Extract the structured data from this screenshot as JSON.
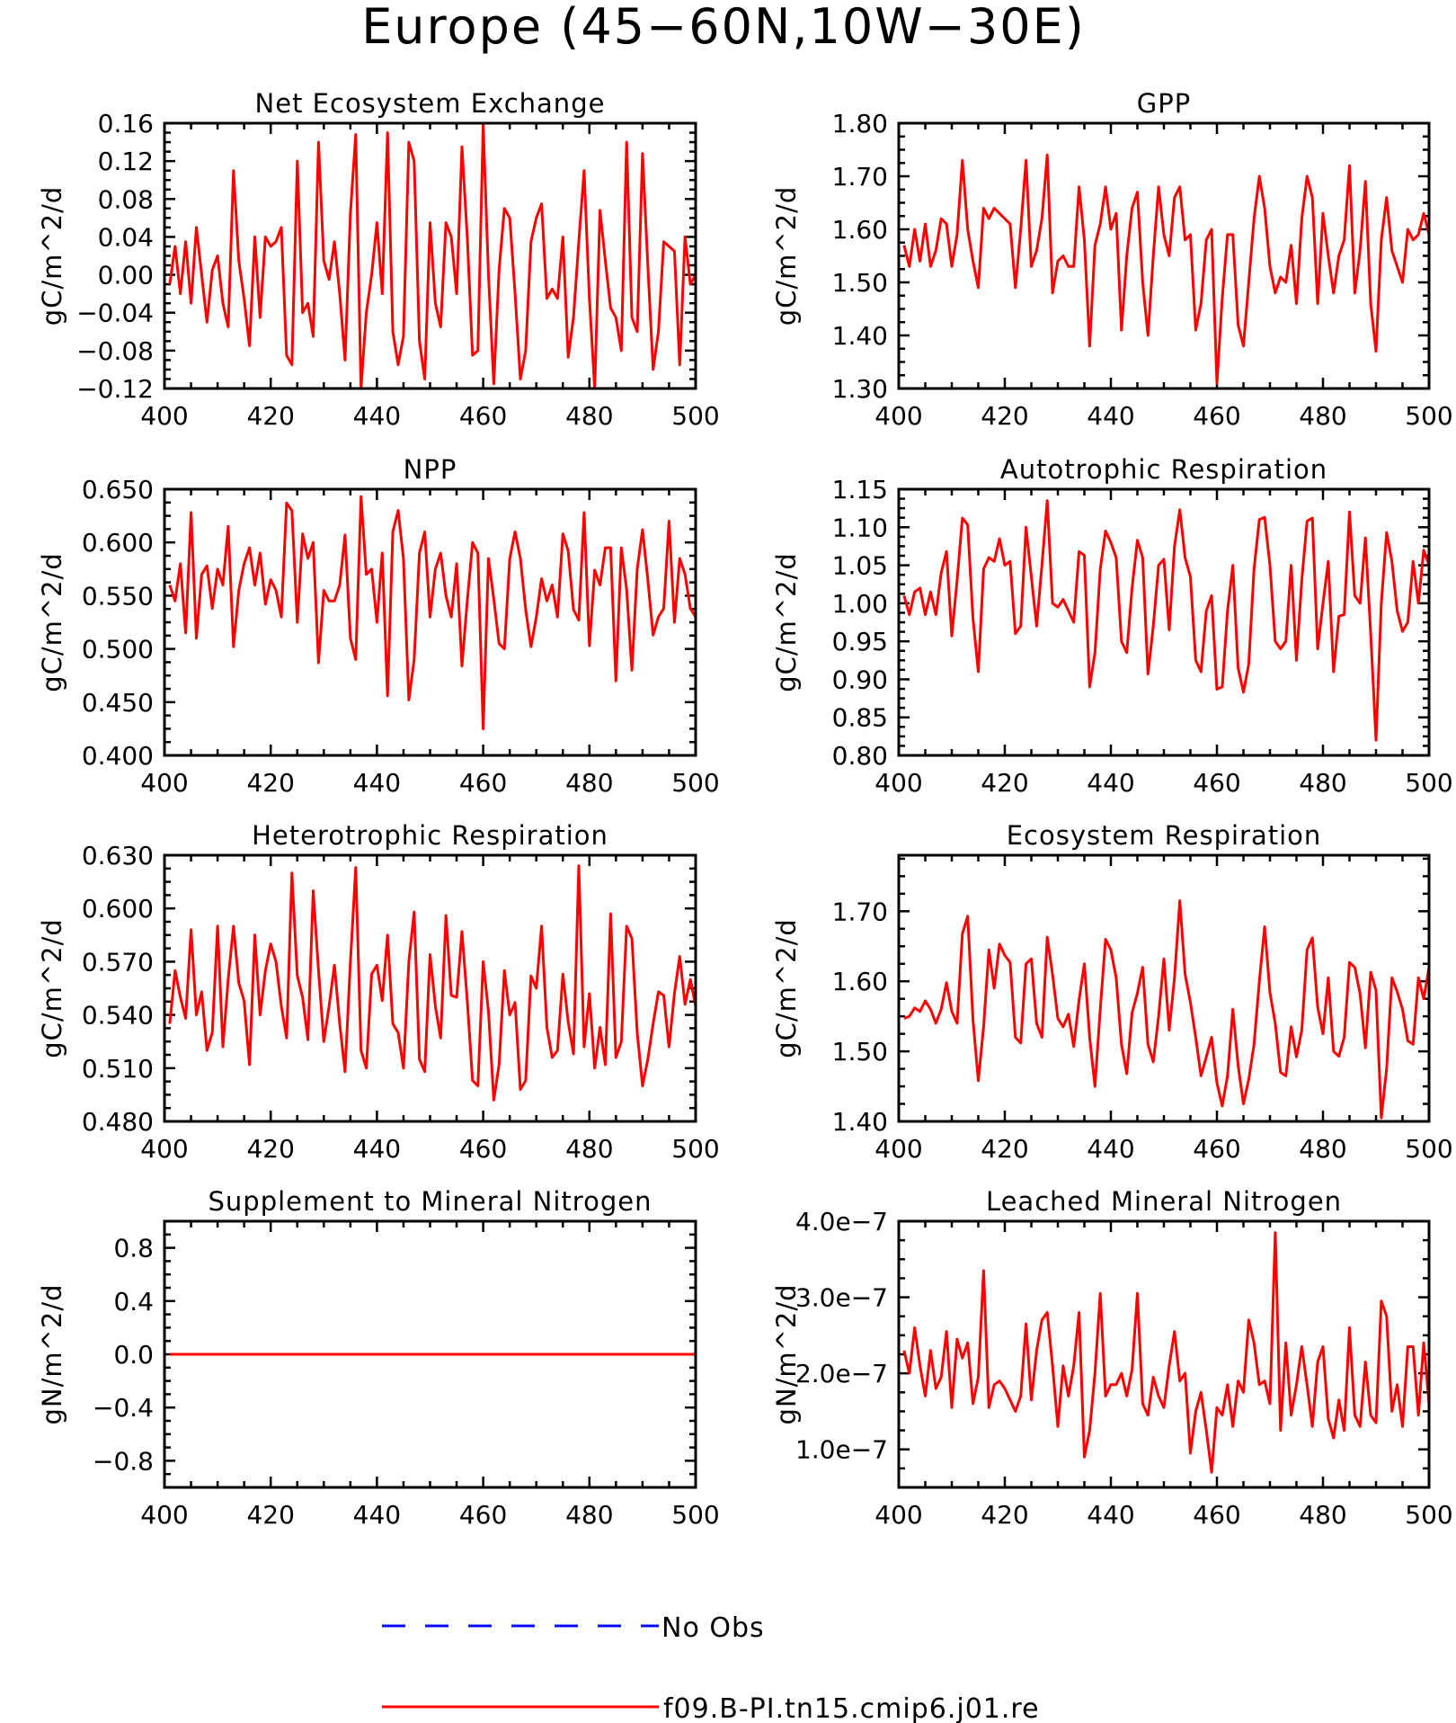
{
  "figure_title": "Europe (45-60N,10W-30E)",
  "legend": [
    {
      "label": "No Obs",
      "color": "#0000ff",
      "dashed": true
    },
    {
      "label": "f09.B-PI.tn15.cmip6.j01.re",
      "color": "#ff0000",
      "dashed": false
    }
  ],
  "chart_data": [
    {
      "type": "line",
      "title": "Net Ecosystem Exchange",
      "ylabel": "gC/m^2/d",
      "xlim": [
        400,
        500
      ],
      "ylim": [
        -0.12,
        0.16
      ],
      "xticks": [
        400,
        420,
        440,
        460,
        480,
        500
      ],
      "yticks": [
        -0.12,
        -0.08,
        -0.04,
        0.0,
        0.04,
        0.08,
        0.12,
        0.16
      ],
      "ytick_labels": [
        "-0.12",
        "-0.08",
        "-0.04",
        "0.00",
        "0.04",
        "0.08",
        "0.12",
        "0.16"
      ],
      "color": "#ff0000",
      "x_start": 401,
      "values": [
        -0.01,
        0.03,
        -0.02,
        0.035,
        -0.03,
        0.05,
        0.0,
        -0.05,
        0.005,
        0.02,
        -0.03,
        -0.055,
        0.11,
        0.015,
        -0.025,
        -0.075,
        0.04,
        -0.045,
        0.04,
        0.03,
        0.035,
        0.05,
        -0.085,
        -0.095,
        0.12,
        -0.04,
        -0.03,
        -0.065,
        0.14,
        0.015,
        -0.005,
        0.035,
        -0.02,
        -0.09,
        0.065,
        0.148,
        -0.12,
        -0.04,
        0.0,
        0.055,
        -0.02,
        0.15,
        -0.06,
        -0.095,
        -0.065,
        0.14,
        0.12,
        -0.07,
        -0.11,
        0.055,
        -0.03,
        -0.055,
        0.055,
        0.04,
        -0.02,
        0.135,
        0.04,
        -0.085,
        -0.08,
        0.158,
        0.0,
        -0.115,
        0.005,
        0.07,
        0.06,
        -0.02,
        -0.11,
        -0.08,
        0.035,
        0.06,
        0.075,
        -0.025,
        -0.015,
        -0.025,
        0.04,
        -0.087,
        -0.045,
        0.035,
        0.11,
        -0.025,
        -0.12,
        0.068,
        0.015,
        -0.035,
        -0.045,
        -0.08,
        0.14,
        -0.045,
        -0.06,
        0.128,
        0.01,
        -0.1,
        -0.06,
        0.035,
        0.03,
        0.025,
        -0.095,
        0.04,
        -0.01,
        0.0
      ]
    },
    {
      "type": "line",
      "title": "GPP",
      "ylabel": "gC/m^2/d",
      "xlim": [
        400,
        500
      ],
      "ylim": [
        1.3,
        1.8
      ],
      "xticks": [
        400,
        420,
        440,
        460,
        480,
        500
      ],
      "yticks": [
        1.3,
        1.4,
        1.5,
        1.6,
        1.7,
        1.8
      ],
      "ytick_labels": [
        "1.30",
        "1.40",
        "1.50",
        "1.60",
        "1.70",
        "1.80"
      ],
      "color": "#ff0000",
      "x_start": 401,
      "values": [
        1.57,
        1.53,
        1.6,
        1.54,
        1.61,
        1.53,
        1.56,
        1.62,
        1.61,
        1.53,
        1.59,
        1.73,
        1.6,
        1.54,
        1.49,
        1.64,
        1.62,
        1.64,
        1.63,
        1.62,
        1.61,
        1.49,
        1.6,
        1.73,
        1.53,
        1.56,
        1.62,
        1.74,
        1.48,
        1.54,
        1.55,
        1.53,
        1.53,
        1.68,
        1.58,
        1.38,
        1.57,
        1.61,
        1.68,
        1.6,
        1.63,
        1.41,
        1.55,
        1.64,
        1.67,
        1.5,
        1.4,
        1.55,
        1.68,
        1.59,
        1.55,
        1.66,
        1.68,
        1.58,
        1.59,
        1.41,
        1.46,
        1.58,
        1.6,
        1.31,
        1.47,
        1.59,
        1.59,
        1.42,
        1.38,
        1.5,
        1.62,
        1.7,
        1.64,
        1.53,
        1.48,
        1.51,
        1.5,
        1.57,
        1.46,
        1.62,
        1.7,
        1.66,
        1.46,
        1.63,
        1.55,
        1.48,
        1.55,
        1.58,
        1.72,
        1.48,
        1.56,
        1.69,
        1.46,
        1.37,
        1.58,
        1.66,
        1.56,
        1.53,
        1.5,
        1.6,
        1.58,
        1.59,
        1.63,
        1.59
      ]
    },
    {
      "type": "line",
      "title": "NPP",
      "ylabel": "gC/m^2/d",
      "xlim": [
        400,
        500
      ],
      "ylim": [
        0.4,
        0.65
      ],
      "xticks": [
        400,
        420,
        440,
        460,
        480,
        500
      ],
      "yticks": [
        0.4,
        0.45,
        0.5,
        0.55,
        0.6,
        0.65
      ],
      "ytick_labels": [
        "0.400",
        "0.450",
        "0.500",
        "0.550",
        "0.600",
        "0.650"
      ],
      "color": "#ff0000",
      "x_start": 401,
      "values": [
        0.56,
        0.545,
        0.58,
        0.515,
        0.628,
        0.51,
        0.57,
        0.578,
        0.538,
        0.575,
        0.56,
        0.615,
        0.502,
        0.555,
        0.58,
        0.595,
        0.56,
        0.59,
        0.542,
        0.565,
        0.555,
        0.53,
        0.637,
        0.63,
        0.525,
        0.608,
        0.585,
        0.6,
        0.487,
        0.555,
        0.545,
        0.545,
        0.56,
        0.607,
        0.51,
        0.49,
        0.643,
        0.57,
        0.575,
        0.525,
        0.59,
        0.456,
        0.61,
        0.63,
        0.585,
        0.452,
        0.49,
        0.59,
        0.61,
        0.53,
        0.575,
        0.59,
        0.55,
        0.53,
        0.58,
        0.484,
        0.545,
        0.6,
        0.59,
        0.425,
        0.585,
        0.547,
        0.505,
        0.5,
        0.585,
        0.61,
        0.585,
        0.537,
        0.502,
        0.53,
        0.566,
        0.545,
        0.56,
        0.53,
        0.608,
        0.592,
        0.537,
        0.527,
        0.628,
        0.503,
        0.574,
        0.56,
        0.595,
        0.595,
        0.47,
        0.595,
        0.556,
        0.48,
        0.575,
        0.612,
        0.565,
        0.513,
        0.53,
        0.538,
        0.62,
        0.525,
        0.585,
        0.57,
        0.538,
        0.53
      ]
    },
    {
      "type": "line",
      "title": "Autotrophic Respiration",
      "ylabel": "gC/m^2/d",
      "xlim": [
        400,
        500
      ],
      "ylim": [
        0.8,
        1.15
      ],
      "xticks": [
        400,
        420,
        440,
        460,
        480,
        500
      ],
      "yticks": [
        0.8,
        0.85,
        0.9,
        0.95,
        1.0,
        1.05,
        1.1,
        1.15
      ],
      "ytick_labels": [
        "0.80",
        "0.85",
        "0.90",
        "0.95",
        "1.00",
        "1.05",
        "1.10",
        "1.15"
      ],
      "color": "#ff0000",
      "x_start": 401,
      "values": [
        1.01,
        0.985,
        1.015,
        1.02,
        0.985,
        1.015,
        0.985,
        1.04,
        1.068,
        0.957,
        1.03,
        1.112,
        1.103,
        0.98,
        0.91,
        1.045,
        1.06,
        1.055,
        1.085,
        1.05,
        1.055,
        0.96,
        0.97,
        1.1,
        1.035,
        0.97,
        1.05,
        1.135,
        1.0,
        0.995,
        1.005,
        0.99,
        0.975,
        1.068,
        1.063,
        0.89,
        0.935,
        1.045,
        1.095,
        1.08,
        1.06,
        0.95,
        0.935,
        1.02,
        1.083,
        1.06,
        0.907,
        0.97,
        1.05,
        1.058,
        0.965,
        1.075,
        1.123,
        1.06,
        1.035,
        0.925,
        0.91,
        0.99,
        1.01,
        0.887,
        0.89,
        0.99,
        1.05,
        0.915,
        0.883,
        0.92,
        1.045,
        1.11,
        1.113,
        1.05,
        0.95,
        0.94,
        0.95,
        1.05,
        0.925,
        1.03,
        1.108,
        1.112,
        0.94,
        1.0,
        1.055,
        0.91,
        0.983,
        0.985,
        1.12,
        1.01,
        1.0,
        1.086,
        0.96,
        0.82,
        1.0,
        1.093,
        1.055,
        0.99,
        0.963,
        0.975,
        1.055,
        1.0,
        1.07,
        1.05
      ]
    },
    {
      "type": "line",
      "title": "Heterotrophic Respiration",
      "ylabel": "gC/m^2/d",
      "xlim": [
        400,
        500
      ],
      "ylim": [
        0.48,
        0.63
      ],
      "xticks": [
        400,
        420,
        440,
        460,
        480,
        500
      ],
      "yticks": [
        0.48,
        0.51,
        0.54,
        0.57,
        0.6,
        0.63
      ],
      "ytick_labels": [
        "0.480",
        "0.510",
        "0.540",
        "0.570",
        "0.600",
        "0.630"
      ],
      "color": "#ff0000",
      "x_start": 401,
      "values": [
        0.535,
        0.565,
        0.55,
        0.538,
        0.588,
        0.54,
        0.553,
        0.52,
        0.53,
        0.59,
        0.522,
        0.56,
        0.59,
        0.558,
        0.548,
        0.512,
        0.585,
        0.54,
        0.565,
        0.58,
        0.57,
        0.545,
        0.527,
        0.62,
        0.562,
        0.55,
        0.526,
        0.61,
        0.565,
        0.525,
        0.545,
        0.568,
        0.535,
        0.508,
        0.57,
        0.623,
        0.52,
        0.51,
        0.563,
        0.568,
        0.548,
        0.585,
        0.535,
        0.53,
        0.51,
        0.57,
        0.598,
        0.515,
        0.508,
        0.574,
        0.545,
        0.527,
        0.596,
        0.551,
        0.55,
        0.587,
        0.548,
        0.503,
        0.5,
        0.57,
        0.542,
        0.492,
        0.512,
        0.565,
        0.54,
        0.547,
        0.498,
        0.503,
        0.562,
        0.555,
        0.59,
        0.533,
        0.516,
        0.52,
        0.563,
        0.536,
        0.518,
        0.624,
        0.522,
        0.552,
        0.51,
        0.533,
        0.512,
        0.597,
        0.516,
        0.525,
        0.59,
        0.583,
        0.53,
        0.5,
        0.515,
        0.535,
        0.553,
        0.551,
        0.522,
        0.552,
        0.573,
        0.546,
        0.56,
        0.545
      ]
    },
    {
      "type": "line",
      "title": "Ecosystem Respiration",
      "ylabel": "gC/m^2/d",
      "xlim": [
        400,
        500
      ],
      "ylim": [
        1.4,
        1.78
      ],
      "xticks": [
        400,
        420,
        440,
        460,
        480,
        500
      ],
      "yticks": [
        1.4,
        1.5,
        1.6,
        1.7
      ],
      "ytick_labels": [
        "1.40",
        "1.50",
        "1.60",
        "1.70"
      ],
      "color": "#ff0000",
      "x_start": 401,
      "values": [
        1.547,
        1.55,
        1.562,
        1.557,
        1.572,
        1.56,
        1.54,
        1.56,
        1.598,
        1.557,
        1.54,
        1.668,
        1.693,
        1.545,
        1.458,
        1.535,
        1.645,
        1.59,
        1.653,
        1.637,
        1.627,
        1.52,
        1.512,
        1.625,
        1.632,
        1.54,
        1.52,
        1.663,
        1.61,
        1.547,
        1.535,
        1.553,
        1.507,
        1.573,
        1.625,
        1.52,
        1.45,
        1.56,
        1.66,
        1.645,
        1.605,
        1.51,
        1.468,
        1.555,
        1.583,
        1.62,
        1.51,
        1.485,
        1.55,
        1.632,
        1.53,
        1.605,
        1.715,
        1.61,
        1.57,
        1.52,
        1.465,
        1.492,
        1.52,
        1.455,
        1.422,
        1.465,
        1.56,
        1.48,
        1.425,
        1.46,
        1.51,
        1.6,
        1.678,
        1.584,
        1.54,
        1.47,
        1.465,
        1.535,
        1.492,
        1.53,
        1.645,
        1.662,
        1.563,
        1.525,
        1.605,
        1.5,
        1.493,
        1.52,
        1.627,
        1.62,
        1.582,
        1.505,
        1.613,
        1.587,
        1.405,
        1.475,
        1.605,
        1.585,
        1.56,
        1.515,
        1.51,
        1.605,
        1.575,
        1.62
      ]
    },
    {
      "type": "line",
      "title": "Supplement to Mineral Nitrogen",
      "ylabel": "gN/m^2/d",
      "xlim": [
        400,
        500
      ],
      "ylim": [
        -1.0,
        1.0
      ],
      "xticks": [
        400,
        420,
        440,
        460,
        480,
        500
      ],
      "yticks": [
        -0.8,
        -0.4,
        0.0,
        0.4,
        0.8
      ],
      "ytick_labels": [
        "-0.8",
        "-0.4",
        "0.0",
        "0.4",
        "0.8"
      ],
      "color": "#ff0000",
      "x_start": 401,
      "x_end": 500,
      "constant": 0.0
    },
    {
      "type": "line",
      "title": "Leached Mineral Nitrogen",
      "ylabel": "gN/m^2/d",
      "xlim": [
        400,
        500
      ],
      "ylim": [
        5e-08,
        4e-07
      ],
      "xticks": [
        400,
        420,
        440,
        460,
        480,
        500
      ],
      "yticks": [
        1e-07,
        2e-07,
        3e-07,
        4e-07
      ],
      "ytick_labels": [
        "1.0e-7",
        "2.0e-7",
        "3.0e-7",
        "4.0e-7"
      ],
      "color": "#ff0000",
      "x_start": 401,
      "values_e7": [
        2.3,
        2.0,
        2.6,
        2.1,
        1.7,
        2.3,
        1.8,
        1.95,
        2.55,
        1.55,
        2.45,
        2.2,
        2.4,
        1.6,
        1.95,
        3.35,
        1.55,
        1.85,
        1.9,
        1.8,
        1.65,
        1.5,
        1.7,
        2.65,
        1.65,
        2.3,
        2.7,
        2.8,
        2.1,
        1.3,
        2.1,
        1.7,
        2.1,
        2.8,
        0.9,
        1.25,
        2.0,
        3.05,
        1.7,
        1.85,
        1.85,
        2.0,
        1.7,
        2.05,
        3.05,
        1.6,
        1.45,
        1.95,
        1.7,
        1.55,
        2.1,
        2.55,
        1.9,
        2.0,
        0.95,
        1.5,
        1.75,
        1.25,
        0.7,
        1.55,
        1.45,
        1.85,
        1.3,
        1.9,
        1.75,
        2.7,
        2.4,
        1.85,
        1.9,
        1.6,
        3.85,
        1.25,
        2.4,
        1.45,
        1.85,
        2.35,
        1.85,
        1.3,
        2.15,
        2.35,
        1.4,
        1.15,
        1.65,
        1.25,
        2.6,
        1.45,
        1.3,
        2.15,
        1.45,
        1.35,
        2.95,
        2.75,
        1.5,
        1.85,
        1.3,
        2.35,
        2.35,
        1.45,
        2.4,
        1.6
      ]
    }
  ]
}
